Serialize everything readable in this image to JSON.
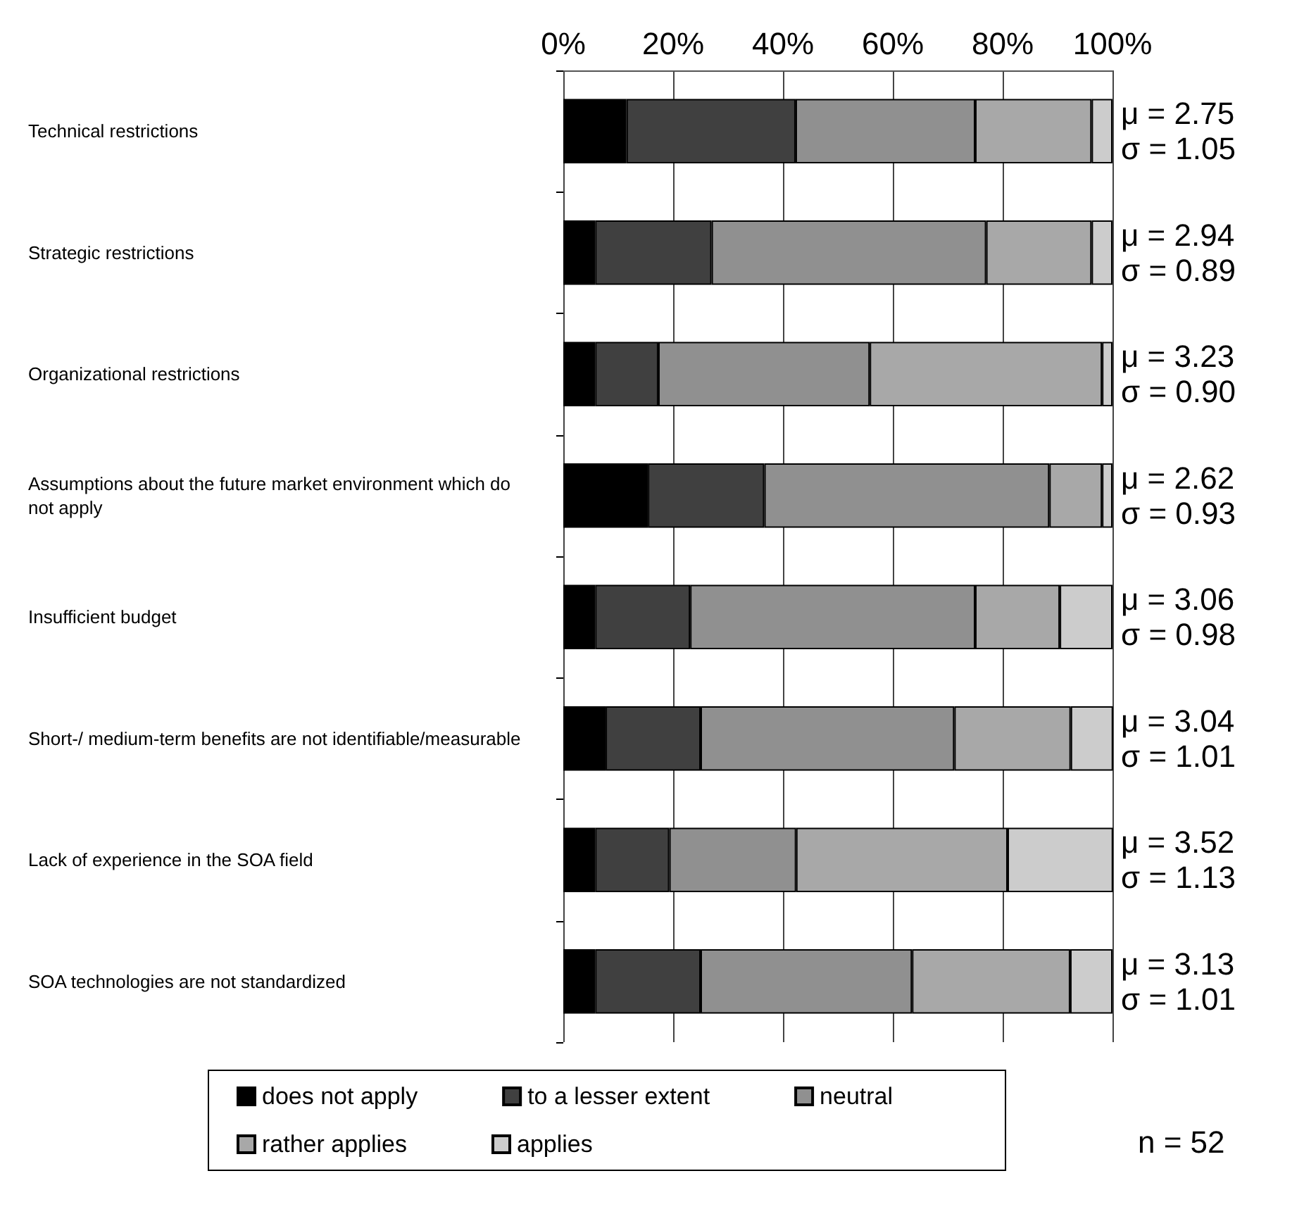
{
  "chart_data": {
    "type": "bar",
    "orientation": "horizontal",
    "stacked": true,
    "categories": [
      "Technical restrictions",
      "Strategic restrictions",
      "Organizational restrictions",
      "Assumptions about the future market environment which do not apply",
      "Insufficient budget",
      "Short-/ medium-term benefits are not identifiable/measurable",
      "Lack of experience in the SOA field",
      "SOA technologies are not standardized"
    ],
    "series": [
      {
        "name": "does not apply",
        "color": "#000000",
        "values": [
          11.5,
          5.8,
          5.8,
          15.4,
          5.8,
          7.7,
          5.8,
          5.8
        ]
      },
      {
        "name": "to a lesser extent",
        "color": "#404040",
        "values": [
          30.8,
          21.2,
          11.5,
          21.2,
          17.3,
          17.3,
          13.5,
          19.2
        ]
      },
      {
        "name": "neutral",
        "color": "#909090",
        "values": [
          32.7,
          50.0,
          38.5,
          51.9,
          51.9,
          46.2,
          23.1,
          38.5
        ]
      },
      {
        "name": "rather applies",
        "color": "#a8a8a8",
        "values": [
          21.2,
          19.2,
          42.3,
          9.6,
          15.4,
          21.2,
          38.5,
          28.8
        ]
      },
      {
        "name": "applies",
        "color": "#cccccc",
        "values": [
          3.8,
          3.8,
          1.9,
          1.9,
          9.6,
          7.7,
          19.2,
          7.7
        ]
      }
    ],
    "xlim": [
      0,
      100
    ],
    "xticks": [
      {
        "value": 0,
        "label": "0%"
      },
      {
        "value": 20,
        "label": "20%"
      },
      {
        "value": 40,
        "label": "40%"
      },
      {
        "value": 60,
        "label": "60%"
      },
      {
        "value": 80,
        "label": "80%"
      },
      {
        "value": 100,
        "label": "100%"
      }
    ],
    "grid": "x",
    "legend": "bottom",
    "annotations": [
      "μ = 2.75\nσ = 1.05",
      "μ = 2.94\nσ = 0.89",
      "μ = 3.23\nσ = 0.90",
      "μ = 2.62\nσ = 0.93",
      "μ = 3.06\nσ = 0.98",
      "μ = 3.04\nσ = 1.01",
      "μ = 3.52\nσ = 1.13",
      "μ = 3.13\nσ = 1.01",
      "n = 52"
    ]
  }
}
